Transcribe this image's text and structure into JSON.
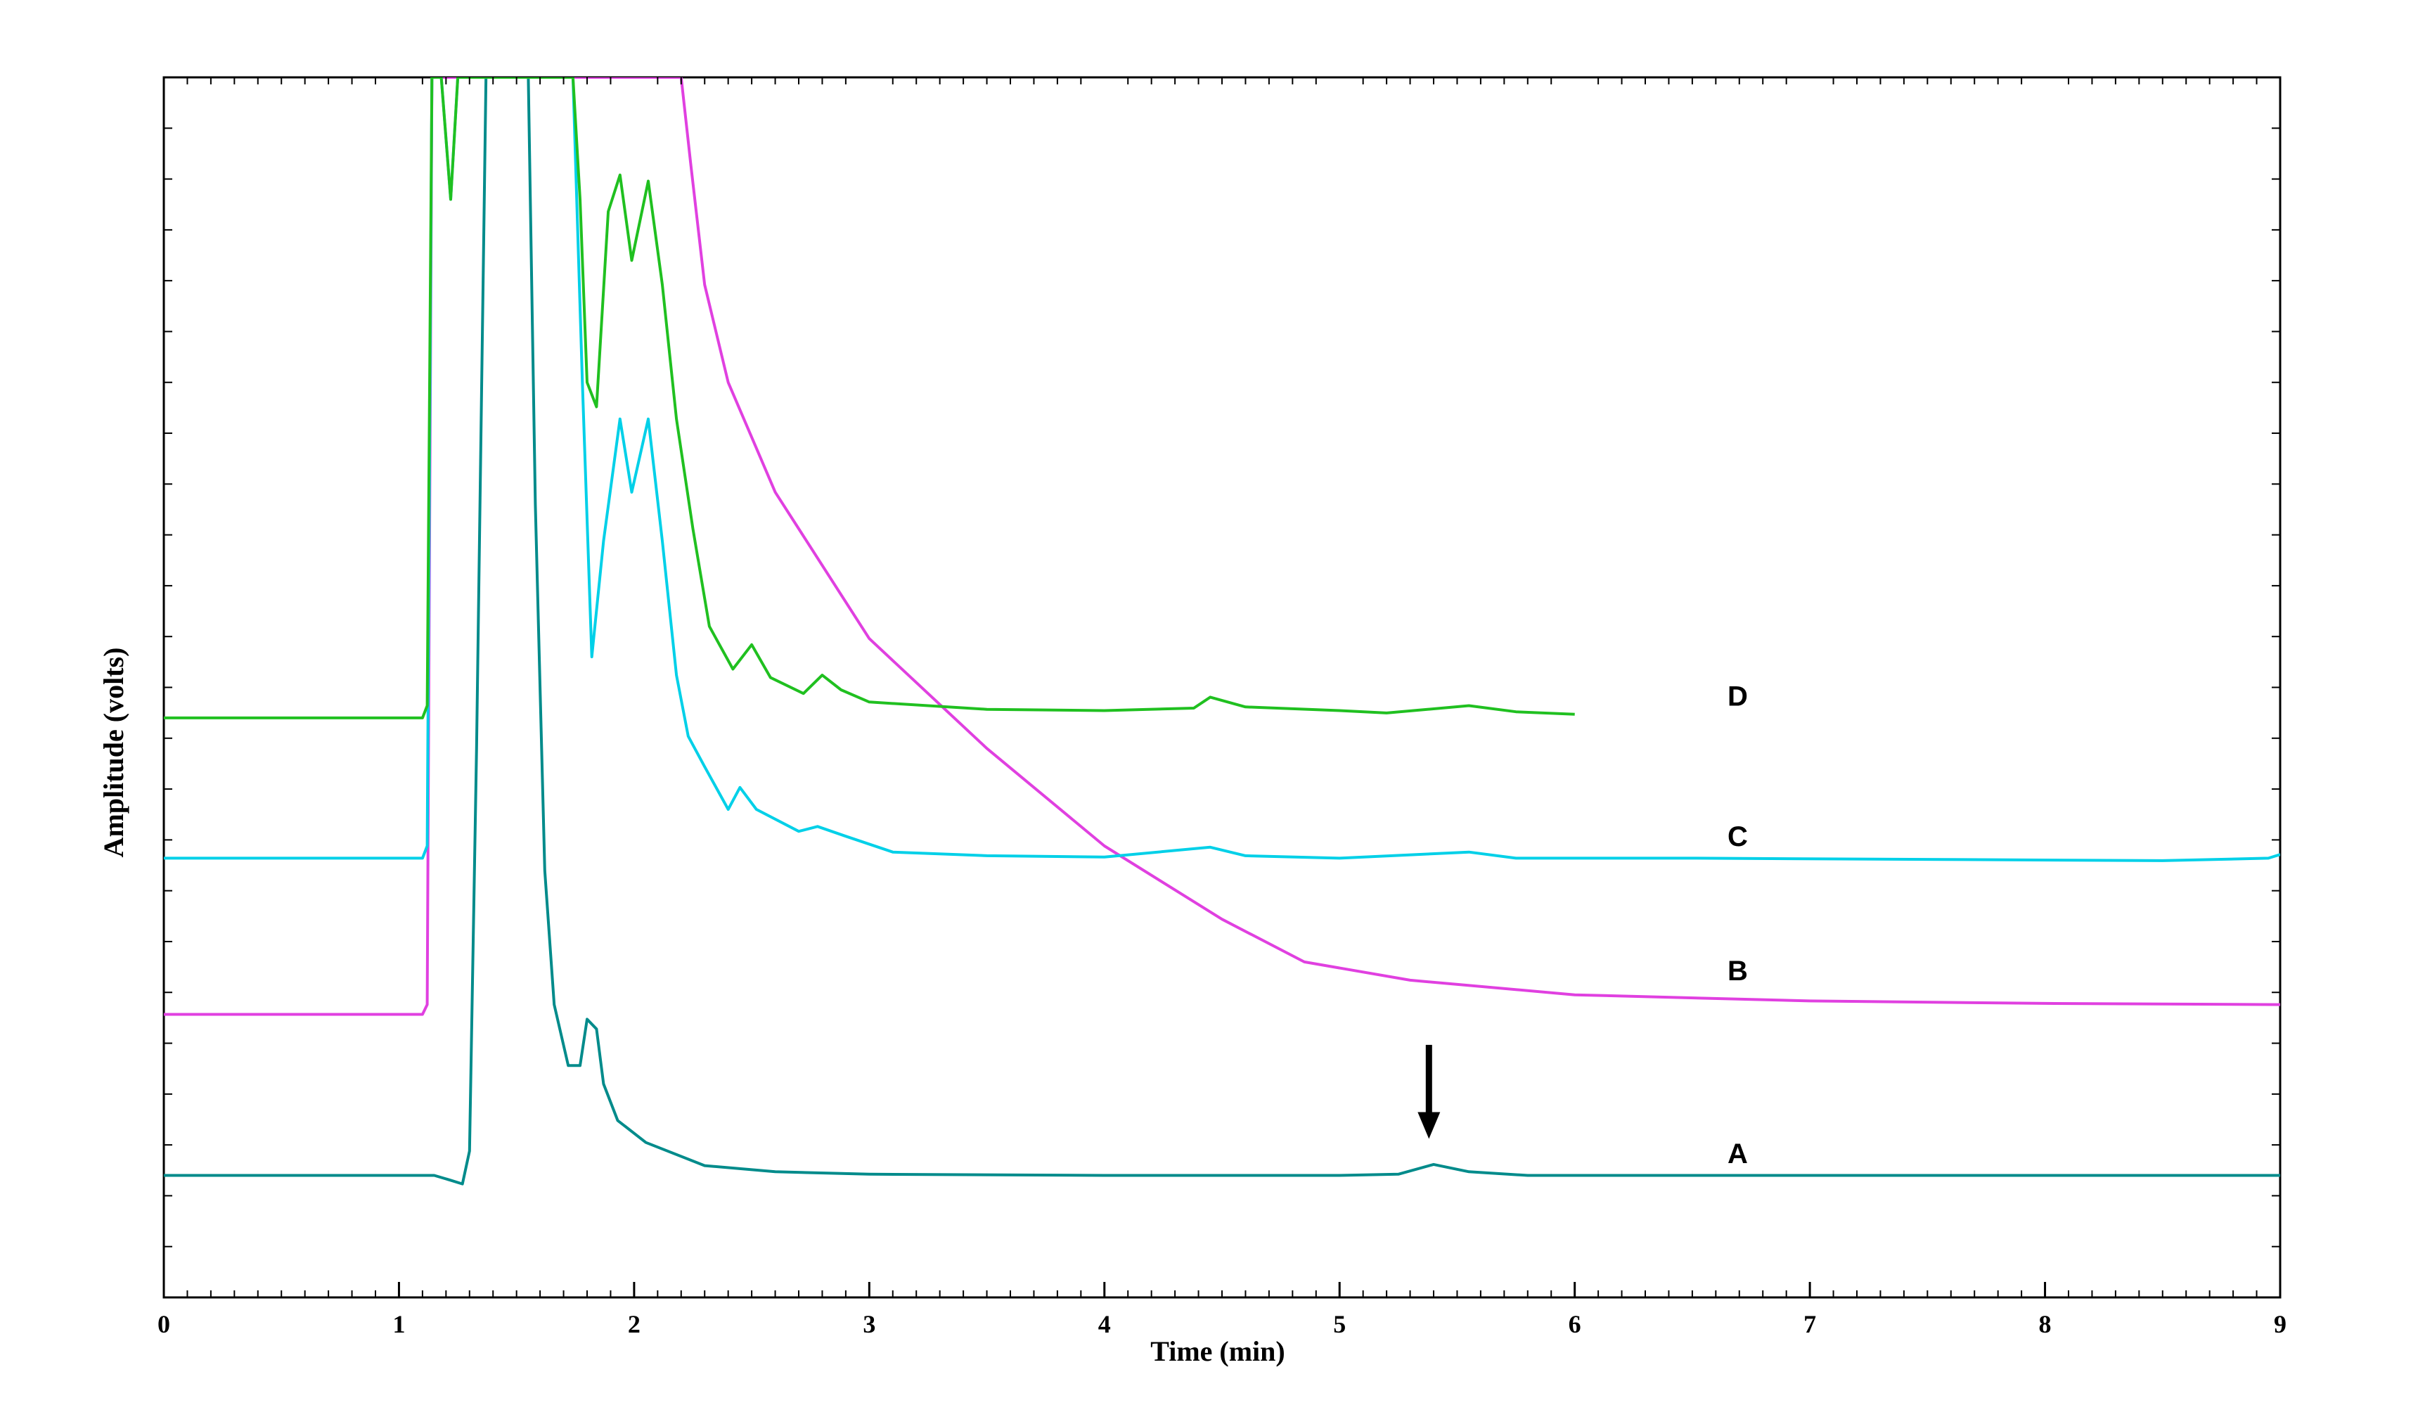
{
  "chart_data": {
    "type": "line",
    "title": "",
    "xlabel": "Time (min)",
    "ylabel": "Amplitude (volts)",
    "xlim": [
      0,
      9
    ],
    "ylim": [
      0,
      10
    ],
    "grid": false,
    "x_ticks": [
      "0",
      "1",
      "2",
      "3",
      "4",
      "5",
      "6",
      "7",
      "8",
      "9"
    ],
    "series": [
      {
        "name": "A",
        "color": "#008b8b",
        "points": [
          [
            0,
            1.0
          ],
          [
            0.5,
            1.0
          ],
          [
            1.0,
            1.0
          ],
          [
            1.15,
            1.0
          ],
          [
            1.22,
            0.96
          ],
          [
            1.27,
            0.93
          ],
          [
            1.3,
            1.2
          ],
          [
            1.33,
            4.5
          ],
          [
            1.37,
            10.0
          ],
          [
            1.55,
            10.0
          ],
          [
            1.58,
            6.5
          ],
          [
            1.62,
            3.5
          ],
          [
            1.66,
            2.4
          ],
          [
            1.72,
            1.9
          ],
          [
            1.77,
            1.9
          ],
          [
            1.8,
            2.28
          ],
          [
            1.84,
            2.2
          ],
          [
            1.87,
            1.75
          ],
          [
            1.93,
            1.45
          ],
          [
            2.05,
            1.27
          ],
          [
            2.3,
            1.08
          ],
          [
            2.6,
            1.03
          ],
          [
            3.0,
            1.01
          ],
          [
            4.0,
            1.0
          ],
          [
            5.0,
            1.0
          ],
          [
            5.25,
            1.01
          ],
          [
            5.4,
            1.09
          ],
          [
            5.55,
            1.03
          ],
          [
            5.8,
            1.0
          ],
          [
            9.0,
            1.0
          ]
        ]
      },
      {
        "name": "B",
        "color": "#e040e0",
        "points": [
          [
            0,
            2.32
          ],
          [
            1.1,
            2.32
          ],
          [
            1.12,
            2.4
          ],
          [
            1.14,
            10.0
          ],
          [
            2.2,
            10.0
          ],
          [
            2.24,
            9.3
          ],
          [
            2.3,
            8.3
          ],
          [
            2.4,
            7.5
          ],
          [
            2.6,
            6.6
          ],
          [
            3.0,
            5.4
          ],
          [
            3.5,
            4.5
          ],
          [
            4.0,
            3.7
          ],
          [
            4.5,
            3.1
          ],
          [
            4.85,
            2.75
          ],
          [
            5.3,
            2.6
          ],
          [
            6.0,
            2.48
          ],
          [
            7.0,
            2.43
          ],
          [
            8.0,
            2.41
          ],
          [
            9.0,
            2.4
          ]
        ]
      },
      {
        "name": "C",
        "color": "#00d0e8",
        "points": [
          [
            0,
            3.6
          ],
          [
            1.1,
            3.6
          ],
          [
            1.12,
            3.7
          ],
          [
            1.14,
            10.0
          ],
          [
            1.18,
            10.0
          ],
          [
            1.22,
            9.0
          ],
          [
            1.25,
            10.0
          ],
          [
            1.74,
            10.0
          ],
          [
            1.78,
            7.5
          ],
          [
            1.82,
            5.25
          ],
          [
            1.87,
            6.2
          ],
          [
            1.94,
            7.2
          ],
          [
            1.99,
            6.6
          ],
          [
            2.06,
            7.2
          ],
          [
            2.12,
            6.2
          ],
          [
            2.18,
            5.1
          ],
          [
            2.23,
            4.6
          ],
          [
            2.3,
            4.35
          ],
          [
            2.4,
            4.0
          ],
          [
            2.45,
            4.18
          ],
          [
            2.52,
            4.0
          ],
          [
            2.7,
            3.82
          ],
          [
            2.78,
            3.86
          ],
          [
            2.9,
            3.78
          ],
          [
            3.1,
            3.65
          ],
          [
            3.5,
            3.62
          ],
          [
            4.0,
            3.61
          ],
          [
            4.45,
            3.69
          ],
          [
            4.6,
            3.62
          ],
          [
            5.0,
            3.6
          ],
          [
            5.55,
            3.65
          ],
          [
            5.75,
            3.6
          ],
          [
            6.5,
            3.6
          ],
          [
            7.5,
            3.59
          ],
          [
            8.5,
            3.58
          ],
          [
            8.95,
            3.6
          ],
          [
            9.0,
            3.63
          ]
        ]
      },
      {
        "name": "D",
        "color": "#20c020",
        "points": [
          [
            0,
            4.75
          ],
          [
            1.1,
            4.75
          ],
          [
            1.12,
            4.85
          ],
          [
            1.14,
            10.0
          ],
          [
            1.18,
            10.0
          ],
          [
            1.22,
            9.0
          ],
          [
            1.25,
            10.0
          ],
          [
            1.74,
            10.0
          ],
          [
            1.77,
            9.0
          ],
          [
            1.8,
            7.5
          ],
          [
            1.84,
            7.3
          ],
          [
            1.89,
            8.9
          ],
          [
            1.94,
            9.2
          ],
          [
            1.99,
            8.5
          ],
          [
            2.06,
            9.15
          ],
          [
            2.12,
            8.3
          ],
          [
            2.18,
            7.2
          ],
          [
            2.25,
            6.3
          ],
          [
            2.32,
            5.5
          ],
          [
            2.42,
            5.15
          ],
          [
            2.5,
            5.35
          ],
          [
            2.58,
            5.08
          ],
          [
            2.72,
            4.95
          ],
          [
            2.8,
            5.1
          ],
          [
            2.88,
            4.98
          ],
          [
            3.0,
            4.88
          ],
          [
            3.5,
            4.82
          ],
          [
            4.0,
            4.81
          ],
          [
            4.38,
            4.83
          ],
          [
            4.45,
            4.92
          ],
          [
            4.6,
            4.84
          ],
          [
            5.0,
            4.81
          ],
          [
            5.2,
            4.79
          ],
          [
            5.55,
            4.85
          ],
          [
            5.75,
            4.8
          ],
          [
            6.0,
            4.78
          ]
        ]
      }
    ],
    "labels": [
      {
        "text": "D",
        "x": 6.65,
        "y": 4.85
      },
      {
        "text": "C",
        "x": 6.65,
        "y": 3.7
      },
      {
        "text": "B",
        "x": 6.65,
        "y": 2.6
      },
      {
        "text": "A",
        "x": 6.65,
        "y": 1.1
      }
    ],
    "annotations": [
      {
        "type": "arrow",
        "x": 5.38,
        "y_from": 2.07,
        "y_to": 1.3,
        "label": ""
      }
    ]
  }
}
